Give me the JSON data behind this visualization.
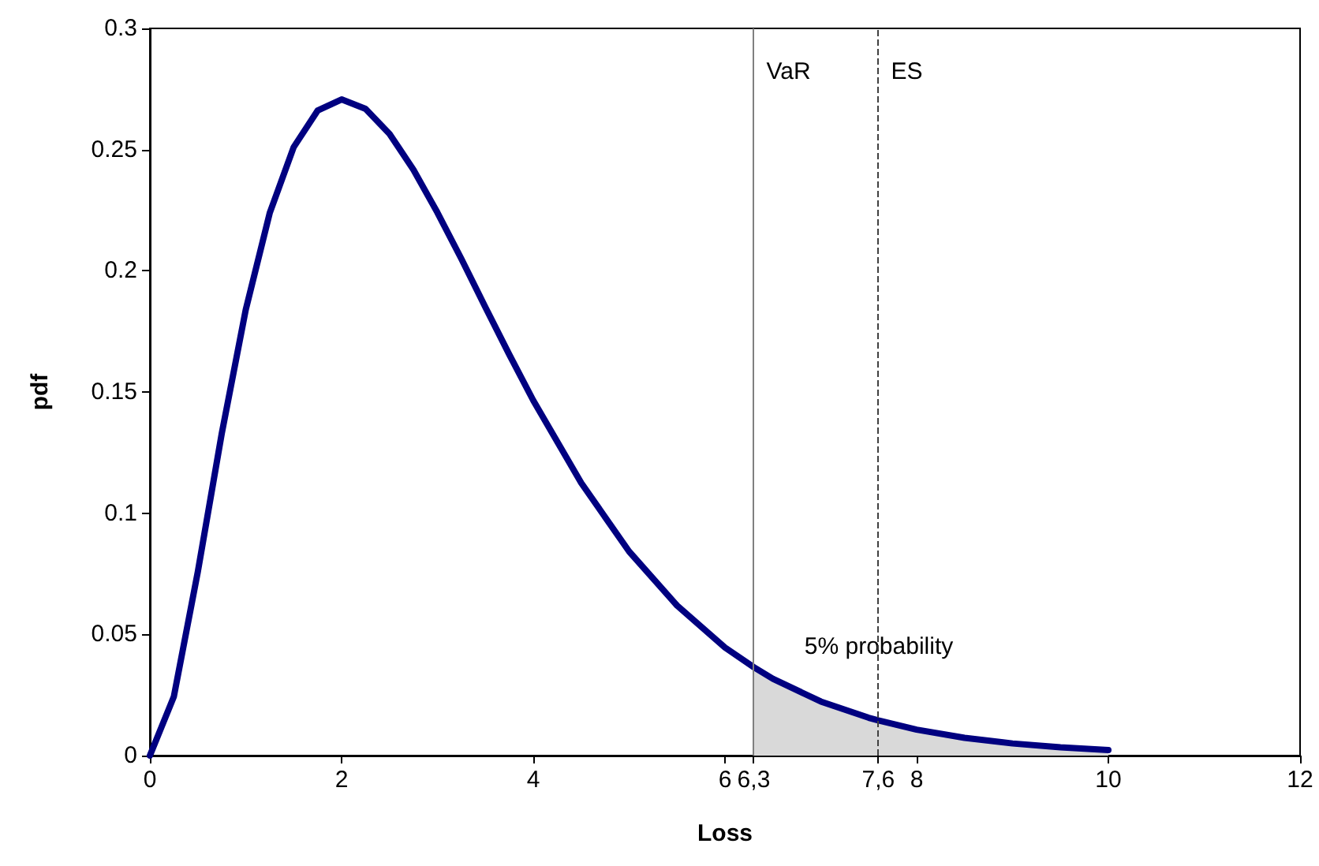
{
  "chart_data": {
    "type": "line",
    "xlabel": "Loss",
    "ylabel": "pdf",
    "xlim": [
      0,
      12
    ],
    "xticks": [
      0,
      2,
      4,
      6,
      {
        "value": 6.3,
        "label": "6,3"
      },
      {
        "value": 7.6,
        "label": "7,6"
      },
      8,
      10,
      12
    ],
    "ylim": [
      0,
      0.3
    ],
    "yticks": [
      0,
      0.05,
      0.1,
      0.15,
      0.2,
      0.25,
      0.3
    ],
    "grid": false,
    "marker": "none",
    "line_style": "solid",
    "series": [
      {
        "color": "#000080",
        "x": [
          0,
          0.25,
          0.5,
          0.75,
          1,
          1.25,
          1.5,
          1.75,
          2,
          2.25,
          2.5,
          2.75,
          3,
          3.25,
          3.5,
          3.75,
          4,
          4.5,
          5,
          5.5,
          6,
          6.3,
          6.5,
          7,
          7.5,
          7.6,
          8,
          8.5,
          9,
          9.5,
          10
        ],
        "values": [
          0,
          0.0243,
          0.0758,
          0.1329,
          0.1839,
          0.2238,
          0.251,
          0.2661,
          0.2707,
          0.2668,
          0.2565,
          0.2417,
          0.224,
          0.2049,
          0.185,
          0.1654,
          0.1465,
          0.1125,
          0.0842,
          0.0619,
          0.0446,
          0.0365,
          0.0317,
          0.0223,
          0.0156,
          0.0145,
          0.0107,
          0.0073,
          0.005,
          0.0034,
          0.0023
        ]
      },
      {
        "type": "area",
        "color": "#d9d9d9",
        "x": [
          6.3,
          6.5,
          7,
          7.5,
          7.6,
          8,
          8.5,
          9,
          9.5,
          10
        ],
        "values": [
          0.0365,
          0.0317,
          0.0223,
          0.0156,
          0.0145,
          0.0107,
          0.0073,
          0.005,
          0.0034,
          0.0023
        ]
      }
    ],
    "ref_lines": [
      {
        "axis": "x",
        "value": 6.3,
        "label": "VaR",
        "color": "#808080",
        "line_style": "solid"
      },
      {
        "axis": "x",
        "value": 7.6,
        "label": "ES",
        "color": "#404040",
        "line_style": "dashed"
      }
    ],
    "annotations": [
      "5% probability"
    ]
  }
}
